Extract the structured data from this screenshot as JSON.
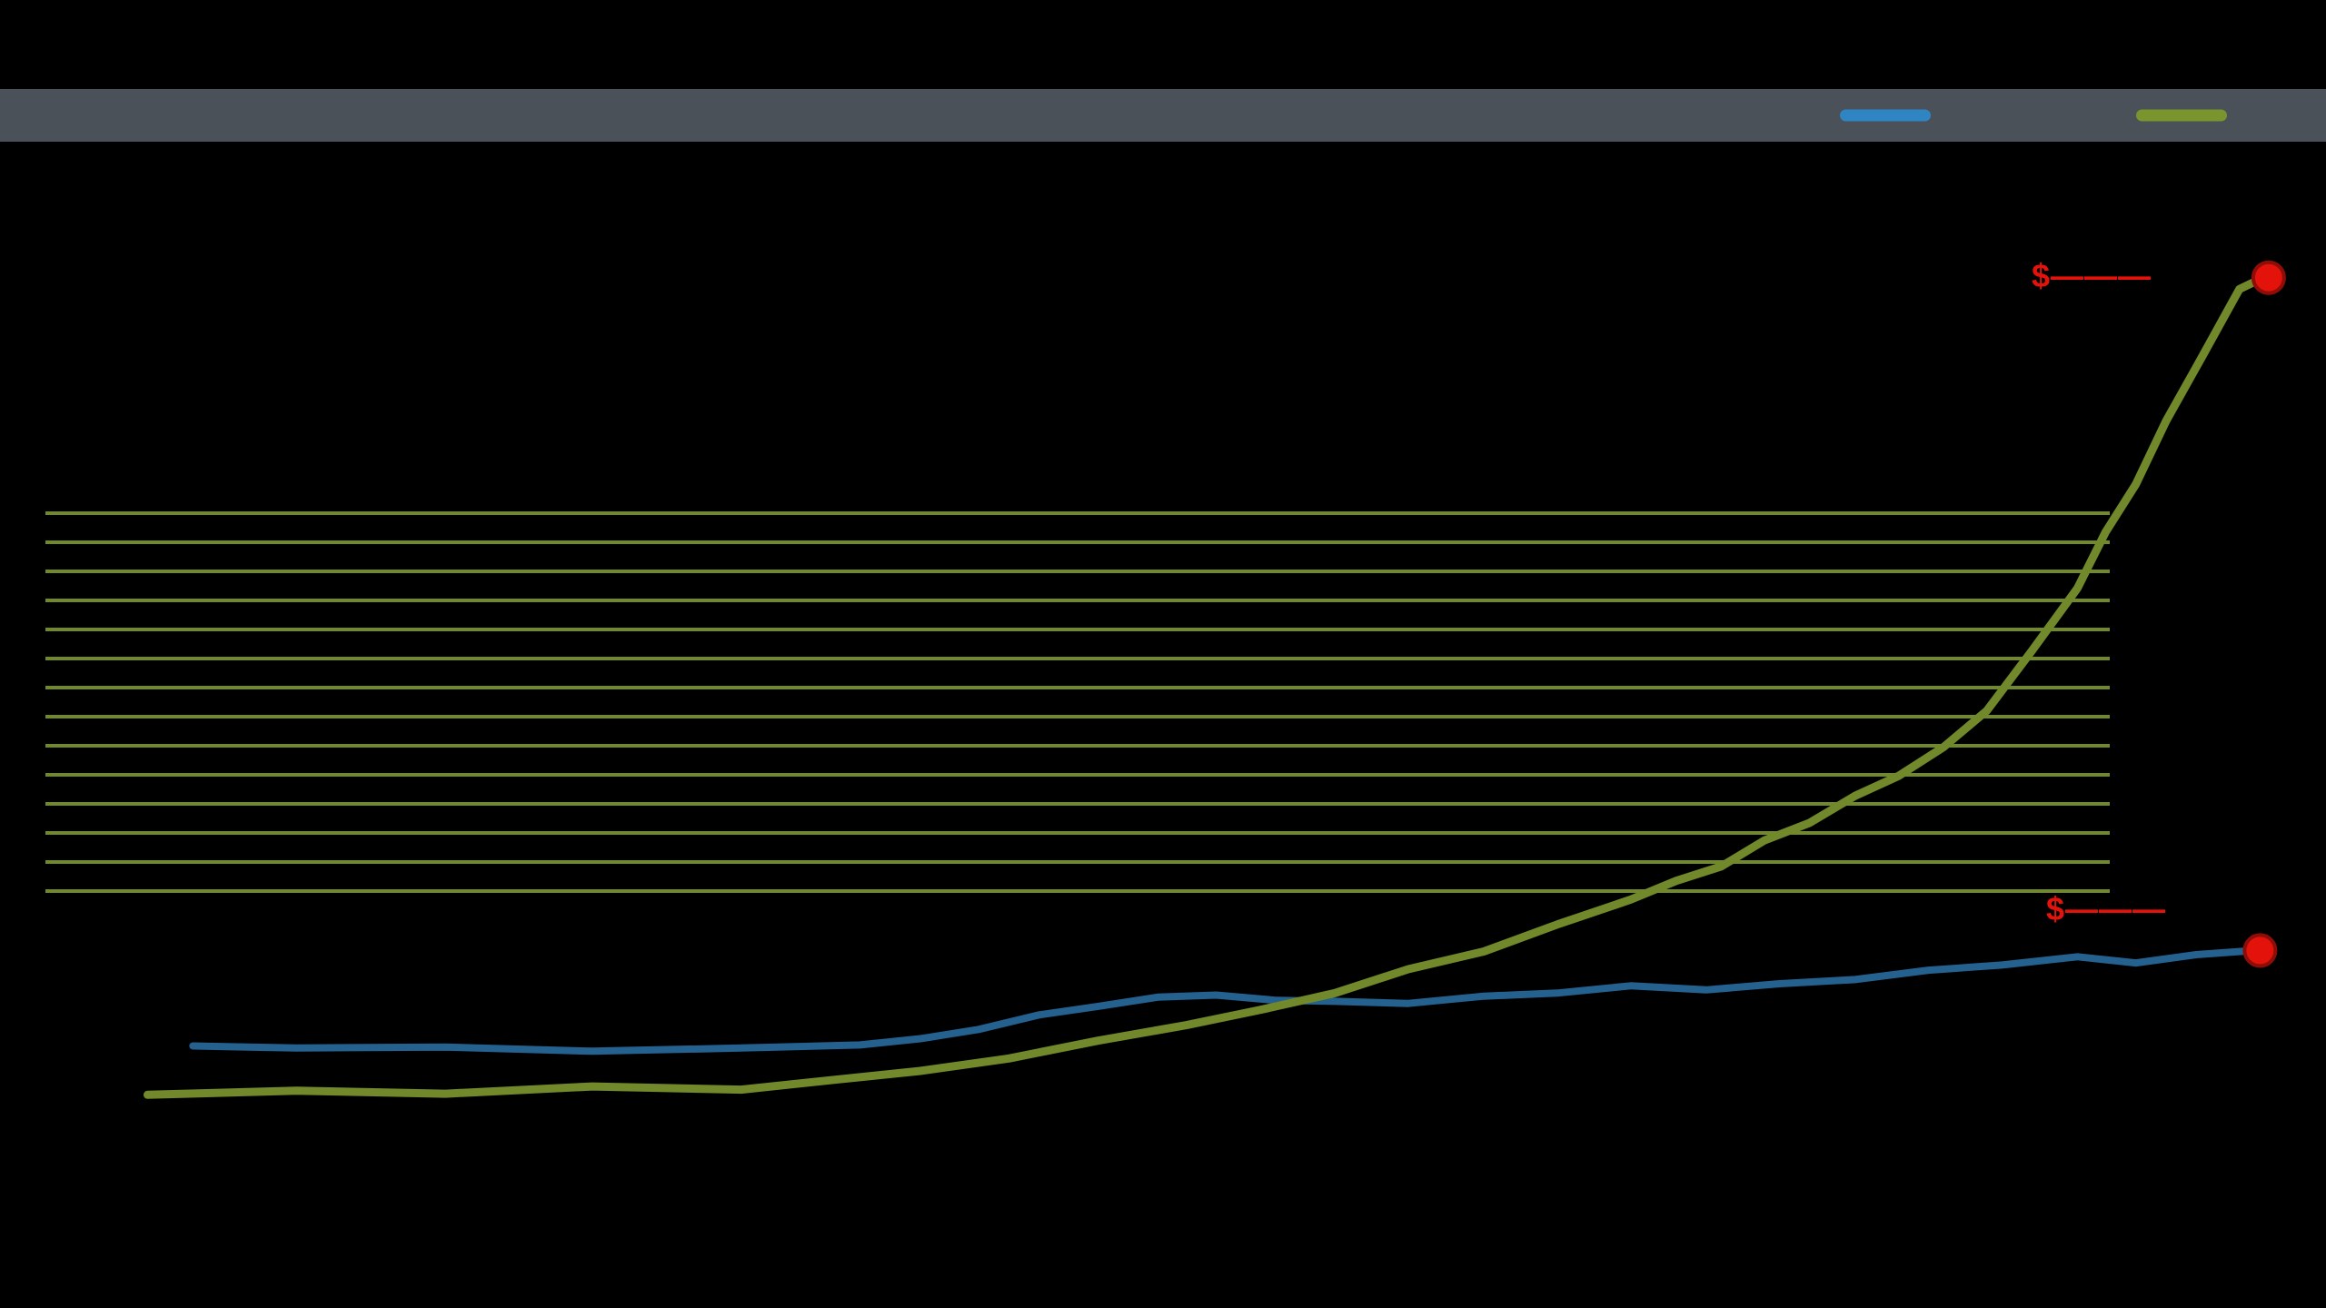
{
  "header": {
    "band_color": "#4b5159"
  },
  "legend": {
    "items": [
      {
        "id": "blue",
        "label": "",
        "color": "#2f85c2"
      },
      {
        "id": "green",
        "label": "",
        "color": "#7a942e"
      }
    ]
  },
  "callouts": {
    "top": {
      "text": "$———",
      "color": "#e3120b"
    },
    "bottom": {
      "text": "$———",
      "color": "#e3120b"
    }
  },
  "chart_data": {
    "type": "line",
    "title": "",
    "xlabel": "",
    "ylabel": "",
    "ylim": [
      0,
      100
    ],
    "x_unit": "percent-of-x-axis",
    "value_unit": "percent-of-plot-height (axis tick labels are blacked out in source)",
    "grid": false,
    "legend_position": "top-right",
    "series": [
      {
        "name": "series-blue",
        "color": "#24618f",
        "x": [
          3.8,
          8.6,
          15.5,
          22.3,
          29.2,
          34.7,
          37.5,
          40.2,
          43.0,
          45.7,
          48.5,
          51.2,
          54.0,
          56.7,
          60.1,
          63.6,
          67.0,
          70.4,
          73.9,
          77.3,
          80.8,
          84.2,
          87.6,
          91.1,
          93.8,
          96.6,
          99.3
        ],
        "values": [
          16.4,
          16.2,
          16.3,
          15.9,
          16.2,
          16.5,
          17.1,
          18.0,
          19.4,
          20.2,
          21.1,
          21.3,
          20.8,
          20.7,
          20.5,
          21.2,
          21.5,
          22.2,
          21.8,
          22.4,
          22.8,
          23.7,
          24.2,
          25.0,
          24.4,
          25.2,
          25.6
        ]
      },
      {
        "name": "series-green",
        "color": "#71882b",
        "x": [
          1.7,
          8.6,
          15.5,
          22.3,
          29.2,
          33.3,
          37.5,
          41.6,
          45.7,
          49.8,
          53.3,
          56.7,
          60.1,
          63.6,
          67.0,
          70.4,
          72.5,
          74.6,
          76.6,
          78.7,
          80.8,
          82.8,
          84.9,
          86.9,
          89.0,
          91.1,
          92.4,
          93.8,
          95.2,
          96.9,
          98.6,
          99.7
        ],
        "values": [
          11.7,
          12.1,
          11.8,
          12.5,
          12.2,
          13.1,
          14.0,
          15.2,
          16.9,
          18.4,
          19.9,
          21.5,
          23.8,
          25.5,
          28.1,
          30.5,
          32.3,
          33.7,
          36.2,
          37.9,
          40.5,
          42.4,
          45.2,
          48.7,
          54.5,
          60.5,
          65.9,
          70.5,
          76.6,
          82.9,
          89.3,
          90.4
        ]
      }
    ],
    "end_markers": [
      {
        "series": "series-green",
        "fill": "#e3120b",
        "stroke": "#8f0d07"
      },
      {
        "series": "series-blue",
        "fill": "#e3120b",
        "stroke": "#8f0d07"
      }
    ]
  }
}
